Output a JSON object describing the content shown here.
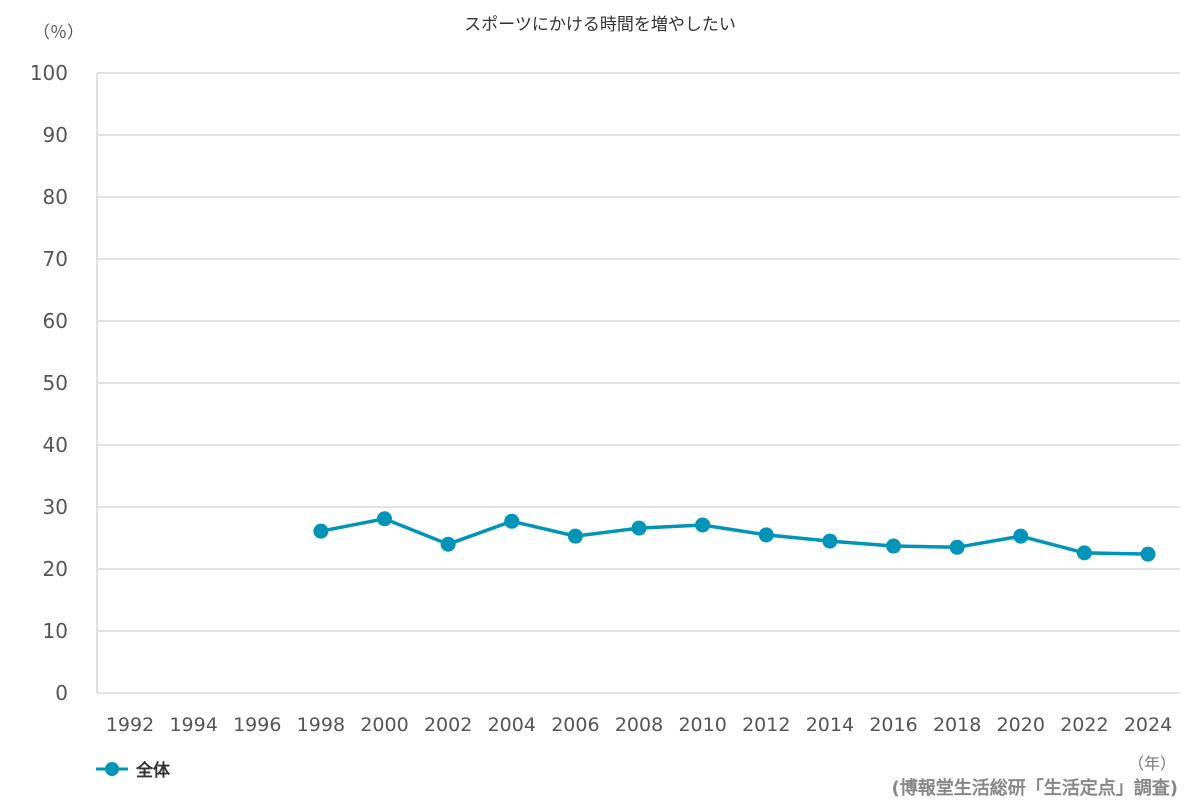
{
  "chart_data": {
    "type": "line",
    "title": "スポーツにかける時間を増やしたい",
    "ylabel": "（％）",
    "xlabel": "（年）",
    "source": "(博報堂生活総研「生活定点」調査)",
    "ylim": [
      0,
      100
    ],
    "yticks": [
      0,
      10,
      20,
      30,
      40,
      50,
      60,
      70,
      80,
      90,
      100
    ],
    "categories": [
      "1992",
      "1994",
      "1996",
      "1998",
      "2000",
      "2002",
      "2004",
      "2006",
      "2008",
      "2010",
      "2012",
      "2014",
      "2016",
      "2018",
      "2020",
      "2022",
      "2024"
    ],
    "grid": true,
    "legend_position": "bottom-left",
    "series": [
      {
        "name": "全体",
        "color": "#0094b8",
        "values": [
          null,
          null,
          null,
          26.1,
          28.1,
          24.0,
          27.7,
          25.3,
          26.6,
          27.1,
          25.5,
          24.5,
          23.7,
          23.5,
          25.3,
          22.6,
          22.4
        ]
      }
    ]
  }
}
